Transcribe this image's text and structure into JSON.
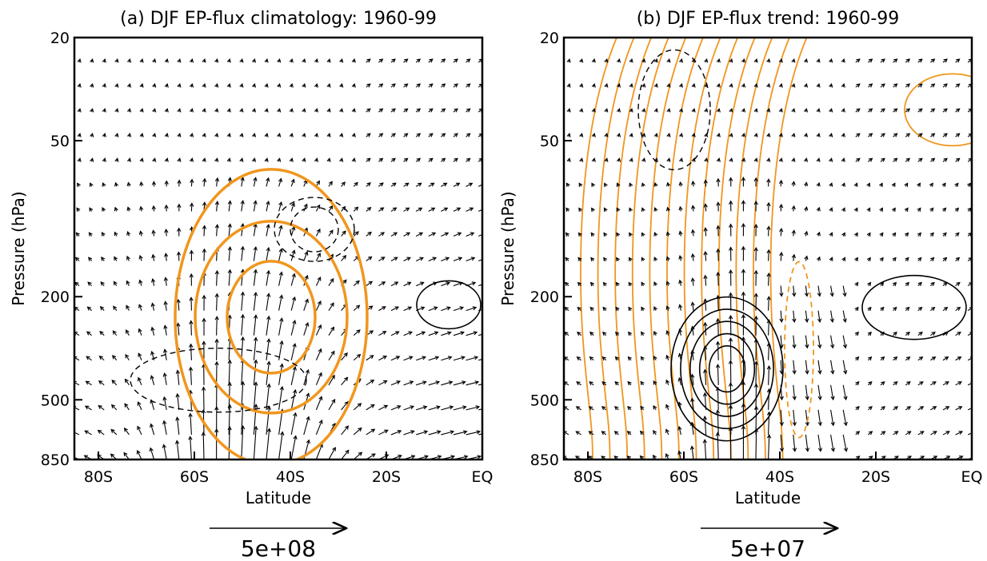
{
  "chart_data": [
    {
      "type": "vector-contour",
      "title": "(a) DJF EP-flux climatology: 1960-99",
      "xlabel": "Latitude",
      "ylabel": "Pressure (hPa)",
      "x_ticks": [
        "80S",
        "60S",
        "40S",
        "20S",
        "EQ"
      ],
      "x_tick_values": [
        -80,
        -60,
        -40,
        -20,
        0
      ],
      "y_ticks": [
        "20",
        "50",
        "200",
        "500",
        "850"
      ],
      "y_tick_values": [
        20,
        50,
        200,
        500,
        850
      ],
      "y_scale": "log",
      "xlim": [
        -85,
        0
      ],
      "ylim": [
        850,
        20
      ],
      "reference_vector_label": "5e+08",
      "contours": [
        {
          "sign": "positive",
          "color": "#f0961e",
          "style": "solid",
          "center": [
            -44,
            240
          ],
          "levels": [
            1,
            2,
            3
          ]
        },
        {
          "sign": "negative",
          "color": "#000000",
          "style": "dashed",
          "center": [
            -35,
            110
          ],
          "levels": [
            1,
            2
          ]
        },
        {
          "sign": "negative",
          "color": "#000000",
          "style": "dashed",
          "center": [
            -55,
            420
          ],
          "levels": [
            1
          ]
        },
        {
          "sign": "positive",
          "color": "#000000",
          "style": "solid",
          "center": [
            -7,
            215
          ],
          "levels": [
            1
          ]
        }
      ],
      "vectors": {
        "color": "#000000",
        "max_upward_near_lat": -50
      }
    },
    {
      "type": "vector-contour",
      "title": "(b) DJF EP-flux trend: 1960-99",
      "xlabel": "Latitude",
      "ylabel": "Pressure (hPa)",
      "x_ticks": [
        "80S",
        "60S",
        "40S",
        "20S",
        "EQ"
      ],
      "x_tick_values": [
        -80,
        -60,
        -40,
        -20,
        0
      ],
      "y_ticks": [
        "20",
        "50",
        "200",
        "500",
        "850"
      ],
      "y_tick_values": [
        20,
        50,
        200,
        500,
        850
      ],
      "y_scale": "log",
      "xlim": [
        -85,
        0
      ],
      "ylim": [
        850,
        20
      ],
      "reference_vector_label": "5e+07",
      "contours": [
        {
          "sign": "positive",
          "color": "#f0961e",
          "style": "solid",
          "type": "meridional-bands",
          "from_lat": -80,
          "to_lat": -40
        },
        {
          "sign": "negative",
          "color": "#000000",
          "style": "dashed",
          "center": [
            -62,
            38
          ],
          "levels": [
            1
          ]
        },
        {
          "sign": "negative",
          "color": "#f0961e",
          "style": "dashed",
          "center": [
            -36,
            320
          ],
          "levels": [
            1
          ]
        },
        {
          "sign": "positive",
          "color": "#000000",
          "style": "solid",
          "center": [
            -51,
            380
          ],
          "levels": [
            1,
            2,
            3,
            4,
            5
          ]
        },
        {
          "sign": "positive",
          "color": "#000000",
          "style": "solid",
          "center": [
            -12,
            220
          ],
          "levels": [
            1
          ]
        }
      ],
      "vectors": {
        "color": "#000000",
        "max_upward_near_lat": -48
      }
    }
  ]
}
